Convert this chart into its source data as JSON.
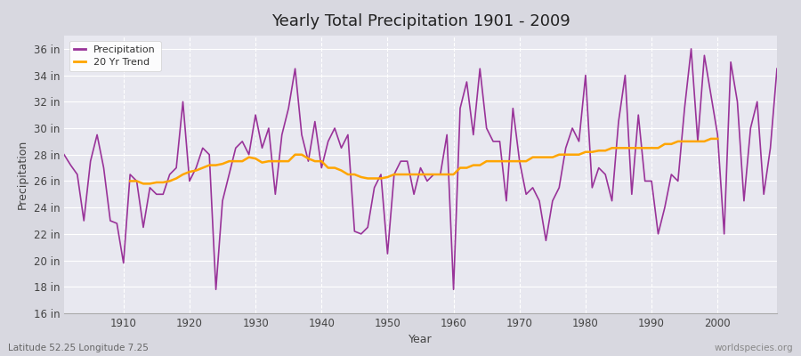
{
  "title": "Yearly Total Precipitation 1901 - 2009",
  "xlabel": "Year",
  "ylabel": "Precipitation",
  "bottom_left": "Latitude 52.25 Longitude 7.25",
  "bottom_right": "worldspecies.org",
  "ylim": [
    16,
    37
  ],
  "yticks": [
    16,
    18,
    20,
    22,
    24,
    26,
    28,
    30,
    32,
    34,
    36
  ],
  "ytick_labels": [
    "16 in",
    "18 in",
    "20 in",
    "22 in",
    "24 in",
    "26 in",
    "28 in",
    "30 in",
    "32 in",
    "34 in",
    "36 in"
  ],
  "xlim": [
    1901,
    2009
  ],
  "xticks": [
    1910,
    1920,
    1930,
    1940,
    1950,
    1960,
    1970,
    1980,
    1990,
    2000
  ],
  "precip_color": "#993399",
  "trend_color": "#FFA500",
  "outer_bg": "#d8d8e0",
  "plot_bg": "#e8e8f0",
  "legend_labels": [
    "Precipitation",
    "20 Yr Trend"
  ],
  "years": [
    1901,
    1902,
    1903,
    1904,
    1905,
    1906,
    1907,
    1908,
    1909,
    1910,
    1911,
    1912,
    1913,
    1914,
    1915,
    1916,
    1917,
    1918,
    1919,
    1920,
    1921,
    1922,
    1923,
    1924,
    1925,
    1926,
    1927,
    1928,
    1929,
    1930,
    1931,
    1932,
    1933,
    1934,
    1935,
    1936,
    1937,
    1938,
    1939,
    1940,
    1941,
    1942,
    1943,
    1944,
    1945,
    1946,
    1947,
    1948,
    1949,
    1950,
    1951,
    1952,
    1953,
    1954,
    1955,
    1956,
    1957,
    1958,
    1959,
    1960,
    1961,
    1962,
    1963,
    1964,
    1965,
    1966,
    1967,
    1968,
    1969,
    1970,
    1971,
    1972,
    1973,
    1974,
    1975,
    1976,
    1977,
    1978,
    1979,
    1980,
    1981,
    1982,
    1983,
    1984,
    1985,
    1986,
    1987,
    1988,
    1989,
    1990,
    1991,
    1992,
    1993,
    1994,
    1995,
    1996,
    1997,
    1998,
    1999,
    2000,
    2001,
    2002,
    2003,
    2004,
    2005,
    2006,
    2007,
    2008,
    2009
  ],
  "precipitation": [
    28.0,
    27.2,
    26.5,
    23.0,
    27.5,
    29.5,
    27.0,
    23.0,
    22.8,
    19.8,
    26.5,
    26.0,
    22.5,
    25.5,
    25.0,
    25.0,
    26.5,
    27.0,
    32.0,
    26.0,
    27.0,
    28.5,
    28.0,
    17.8,
    24.5,
    26.5,
    28.5,
    29.0,
    28.0,
    31.0,
    28.5,
    30.0,
    25.0,
    29.5,
    31.5,
    34.5,
    29.5,
    27.5,
    30.5,
    27.0,
    29.0,
    30.0,
    28.5,
    29.5,
    22.2,
    22.0,
    22.5,
    25.5,
    26.5,
    20.5,
    26.5,
    27.5,
    27.5,
    25.0,
    27.0,
    26.0,
    26.5,
    26.5,
    29.5,
    17.8,
    31.5,
    33.5,
    29.5,
    34.5,
    30.0,
    29.0,
    29.0,
    24.5,
    31.5,
    27.5,
    25.0,
    25.5,
    24.5,
    21.5,
    24.5,
    25.5,
    28.5,
    30.0,
    29.0,
    34.0,
    25.5,
    27.0,
    26.5,
    24.5,
    30.5,
    34.0,
    25.0,
    31.0,
    26.0,
    26.0,
    22.0,
    24.0,
    26.5,
    26.0,
    31.5,
    36.0,
    29.0,
    35.5,
    32.5,
    29.5,
    22.0,
    35.0,
    32.0,
    24.5,
    30.0,
    32.0,
    25.0,
    28.5,
    34.5
  ],
  "trend": [
    null,
    null,
    null,
    null,
    null,
    null,
    null,
    null,
    null,
    null,
    26.0,
    26.0,
    25.8,
    25.8,
    25.9,
    25.9,
    26.0,
    26.2,
    26.5,
    26.7,
    26.8,
    27.0,
    27.2,
    27.2,
    27.3,
    27.5,
    27.5,
    27.5,
    27.8,
    27.7,
    27.4,
    27.5,
    27.5,
    27.5,
    27.5,
    28.0,
    28.0,
    27.7,
    27.5,
    27.5,
    27.0,
    27.0,
    26.8,
    26.5,
    26.5,
    26.3,
    26.2,
    26.2,
    26.2,
    26.3,
    26.5,
    26.5,
    26.5,
    26.5,
    26.5,
    26.5,
    26.5,
    26.5,
    26.5,
    26.5,
    27.0,
    27.0,
    27.2,
    27.2,
    27.5,
    27.5,
    27.5,
    27.5,
    27.5,
    27.5,
    27.5,
    27.8,
    27.8,
    27.8,
    27.8,
    28.0,
    28.0,
    28.0,
    28.0,
    28.2,
    28.2,
    28.3,
    28.3,
    28.5,
    28.5,
    28.5,
    28.5,
    28.5,
    28.5,
    28.5,
    28.5,
    28.8,
    28.8,
    29.0,
    29.0,
    29.0,
    29.0,
    29.0,
    29.2,
    29.2,
    null,
    null,
    null,
    null,
    null,
    null,
    null,
    null,
    null,
    null
  ]
}
